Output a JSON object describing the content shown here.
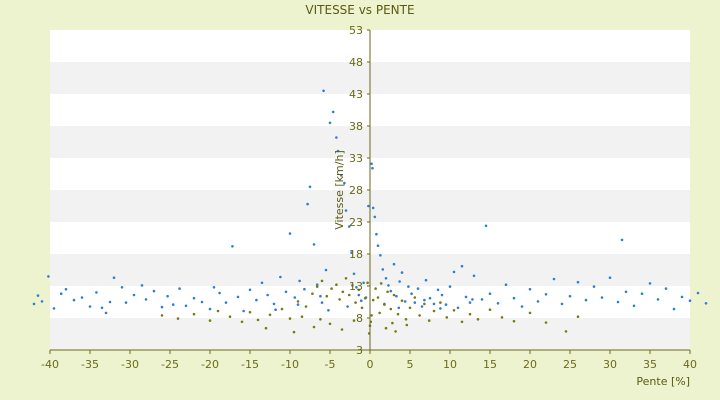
{
  "chart_data": {
    "type": "scatter",
    "title": "VITESSE vs PENTE",
    "xlabel": "Pente [%]",
    "ylabel": "Vitesse [km/h]",
    "xlim": [
      -40,
      40
    ],
    "ylim": [
      3,
      53
    ],
    "x_ticks": [
      "-40",
      "-35",
      "-30",
      "-25",
      "-20",
      "-15",
      "-10",
      "-5",
      "0",
      "5",
      "10",
      "15",
      "20",
      "25",
      "30",
      "35",
      "40"
    ],
    "y_ticks": [
      "3",
      "8",
      "13",
      "18",
      "23",
      "28",
      "33",
      "38",
      "43",
      "48",
      "53"
    ],
    "grid": "alternating horizontal bands",
    "series": [
      {
        "color": "#2f7fd0",
        "marker": "dot",
        "points": [
          [
            -42,
            10.2
          ],
          [
            -41.5,
            11.5
          ],
          [
            -41,
            10.6
          ],
          [
            -40.2,
            14.5
          ],
          [
            -39.5,
            9.5
          ],
          [
            -38.6,
            11.8
          ],
          [
            -38,
            12.5
          ],
          [
            -37,
            10.8
          ],
          [
            -36,
            11.2
          ],
          [
            -35,
            9.8
          ],
          [
            -34.2,
            12
          ],
          [
            -33.5,
            9.6
          ],
          [
            -33,
            8.8
          ],
          [
            -32.5,
            10.5
          ],
          [
            -32,
            14.3
          ],
          [
            -31,
            12.8
          ],
          [
            -30.5,
            10.4
          ],
          [
            -29.5,
            11.6
          ],
          [
            -28.5,
            13.1
          ],
          [
            -28,
            10.9
          ],
          [
            -27,
            12.2
          ],
          [
            -26,
            9.7
          ],
          [
            -25.3,
            11.4
          ],
          [
            -24.6,
            10.1
          ],
          [
            -23.8,
            12.6
          ],
          [
            -23,
            9.9
          ],
          [
            -22,
            11.1
          ],
          [
            -21,
            10.5
          ],
          [
            -20,
            9.4
          ],
          [
            -19.5,
            12.8
          ],
          [
            -18.8,
            11.9
          ],
          [
            -18,
            10.4
          ],
          [
            -17.2,
            19.2
          ],
          [
            -16.5,
            11.3
          ],
          [
            -15.8,
            9.1
          ],
          [
            -15,
            12.4
          ],
          [
            -14.2,
            10.8
          ],
          [
            -13.5,
            13.5
          ],
          [
            -12.8,
            11.6
          ],
          [
            -12,
            10.2
          ],
          [
            -11.2,
            14.4
          ],
          [
            -10.5,
            12.1
          ],
          [
            -10,
            21.2
          ],
          [
            -9.4,
            11.2
          ],
          [
            -8.8,
            13.8
          ],
          [
            -8.2,
            12.5
          ],
          [
            -7.8,
            25.8
          ],
          [
            -7.5,
            28.5
          ],
          [
            -7,
            19.5
          ],
          [
            -6.6,
            13.2
          ],
          [
            -6.2,
            11.4
          ],
          [
            -5.8,
            43.5
          ],
          [
            -5.5,
            15.5
          ],
          [
            -5,
            38.5
          ],
          [
            -4.6,
            40.2
          ],
          [
            -4.2,
            36.2
          ],
          [
            -4,
            34.1
          ],
          [
            -3.6,
            30.3
          ],
          [
            -3.2,
            29.1
          ],
          [
            -3,
            24.8
          ],
          [
            -2.6,
            22.3
          ],
          [
            -2.3,
            18.2
          ],
          [
            -2,
            14.9
          ],
          [
            -1.7,
            12.8
          ],
          [
            -1.4,
            11.6
          ],
          [
            -1.1,
            10.7
          ],
          [
            -0.8,
            13.5
          ],
          [
            -0.5,
            11.2
          ],
          [
            -0.2,
            25.5
          ],
          [
            0.2,
            32.1
          ],
          [
            0.3,
            31.4
          ],
          [
            0.4,
            25.2
          ],
          [
            0.6,
            23.8
          ],
          [
            0.8,
            21.1
          ],
          [
            1,
            19.3
          ],
          [
            1.3,
            17.8
          ],
          [
            1.6,
            15.6
          ],
          [
            2,
            14.2
          ],
          [
            2.3,
            13.1
          ],
          [
            2.6,
            12.2
          ],
          [
            3,
            16.4
          ],
          [
            3.3,
            11.4
          ],
          [
            3.7,
            13.7
          ],
          [
            4,
            15.1
          ],
          [
            4.4,
            10.6
          ],
          [
            4.8,
            12.9
          ],
          [
            5.2,
            11.8
          ],
          [
            5.6,
            10.4
          ],
          [
            6,
            12.6
          ],
          [
            6.5,
            9.8
          ],
          [
            7,
            13.9
          ],
          [
            7.5,
            11.1
          ],
          [
            8,
            10.2
          ],
          [
            8.5,
            12.4
          ],
          [
            9,
            11.6
          ],
          [
            9.5,
            10.1
          ],
          [
            10,
            12.9
          ],
          [
            10.5,
            15.2
          ],
          [
            11,
            9.6
          ],
          [
            11.5,
            16.1
          ],
          [
            12,
            11.3
          ],
          [
            12.5,
            10.4
          ],
          [
            13,
            14.6
          ],
          [
            14,
            10.9
          ],
          [
            14.5,
            22.4
          ],
          [
            15,
            11.8
          ],
          [
            16,
            10.3
          ],
          [
            17,
            13.2
          ],
          [
            18,
            11.1
          ],
          [
            19,
            9.8
          ],
          [
            20,
            12.5
          ],
          [
            21,
            10.6
          ],
          [
            22,
            11.7
          ],
          [
            23,
            14.1
          ],
          [
            24,
            10.2
          ],
          [
            25,
            11.4
          ],
          [
            26,
            13.6
          ],
          [
            27,
            10.8
          ],
          [
            28,
            12.9
          ],
          [
            29,
            11.2
          ],
          [
            30,
            14.3
          ],
          [
            31,
            10.5
          ],
          [
            31.5,
            20.2
          ],
          [
            32,
            12.1
          ],
          [
            33,
            9.9
          ],
          [
            34,
            11.8
          ],
          [
            35,
            13.4
          ],
          [
            36,
            10.9
          ],
          [
            37,
            12.6
          ],
          [
            38,
            9.4
          ],
          [
            39,
            11.3
          ],
          [
            40,
            10.7
          ],
          [
            41,
            11.9
          ],
          [
            42,
            10.3
          ],
          [
            -5.2,
            9.2
          ],
          [
            -6,
            10.4
          ],
          [
            -2.8,
            9.8
          ],
          [
            1.8,
            10.2
          ],
          [
            3.6,
            9.6
          ],
          [
            6.8,
            10.8
          ],
          [
            -9,
            10.1
          ],
          [
            -11.8,
            9.3
          ],
          [
            8.8,
            9.5
          ],
          [
            12.8,
            10.9
          ]
        ]
      },
      {
        "color": "#7a7a10",
        "marker": "dot",
        "points": [
          [
            -26,
            8.4
          ],
          [
            -24,
            7.9
          ],
          [
            -22,
            8.6
          ],
          [
            -20,
            7.6
          ],
          [
            -19,
            9.1
          ],
          [
            -17.5,
            8.2
          ],
          [
            -16,
            7.4
          ],
          [
            -15,
            8.9
          ],
          [
            -14,
            7.7
          ],
          [
            -12.5,
            8.5
          ],
          [
            -11,
            9.4
          ],
          [
            -10,
            7.9
          ],
          [
            -9,
            10.6
          ],
          [
            -8,
            9.8
          ],
          [
            -7.2,
            11.8
          ],
          [
            -6.6,
            12.9
          ],
          [
            -6,
            13.8
          ],
          [
            -5.4,
            11.4
          ],
          [
            -4.8,
            12.6
          ],
          [
            -4.2,
            13.2
          ],
          [
            -3.8,
            10.9
          ],
          [
            -3.4,
            12.1
          ],
          [
            -3,
            14.2
          ],
          [
            -2.6,
            11.6
          ],
          [
            -2.2,
            13.1
          ],
          [
            -1.8,
            10.4
          ],
          [
            -1.4,
            12.4
          ],
          [
            -1,
            9.6
          ],
          [
            -0.6,
            11.1
          ],
          [
            -0.3,
            13.5
          ],
          [
            -0.1,
            5.6
          ],
          [
            0,
            6.8
          ],
          [
            0.1,
            7.4
          ],
          [
            0.2,
            8.4
          ],
          [
            0.4,
            10.8
          ],
          [
            0.7,
            12.6
          ],
          [
            1,
            11.2
          ],
          [
            1.4,
            13.4
          ],
          [
            1.8,
            10.1
          ],
          [
            2.2,
            12.1
          ],
          [
            2.6,
            9.4
          ],
          [
            3,
            11.6
          ],
          [
            3.5,
            8.6
          ],
          [
            4,
            10.7
          ],
          [
            4.5,
            7.8
          ],
          [
            5,
            9.6
          ],
          [
            5.6,
            11.2
          ],
          [
            6.2,
            8.4
          ],
          [
            6.8,
            10.2
          ],
          [
            7.4,
            7.6
          ],
          [
            8,
            9.1
          ],
          [
            8.8,
            10.4
          ],
          [
            9.6,
            8.1
          ],
          [
            10.5,
            9.2
          ],
          [
            11.5,
            7.4
          ],
          [
            12.5,
            8.6
          ],
          [
            13.5,
            7.8
          ],
          [
            15,
            9.3
          ],
          [
            16.5,
            8.1
          ],
          [
            18,
            7.5
          ],
          [
            20,
            8.8
          ],
          [
            22,
            7.3
          ],
          [
            24.5,
            5.9
          ],
          [
            26,
            8.2
          ],
          [
            -13,
            6.4
          ],
          [
            -9.5,
            5.8
          ],
          [
            -7,
            6.6
          ],
          [
            -5,
            7.1
          ],
          [
            -3.5,
            6.2
          ],
          [
            -2,
            7.6
          ],
          [
            2,
            6.4
          ],
          [
            3.2,
            5.9
          ],
          [
            4.6,
            6.9
          ],
          [
            -8.5,
            8.2
          ],
          [
            -6.2,
            7.8
          ],
          [
            1.2,
            8.8
          ],
          [
            2.8,
            7.2
          ]
        ]
      }
    ]
  }
}
